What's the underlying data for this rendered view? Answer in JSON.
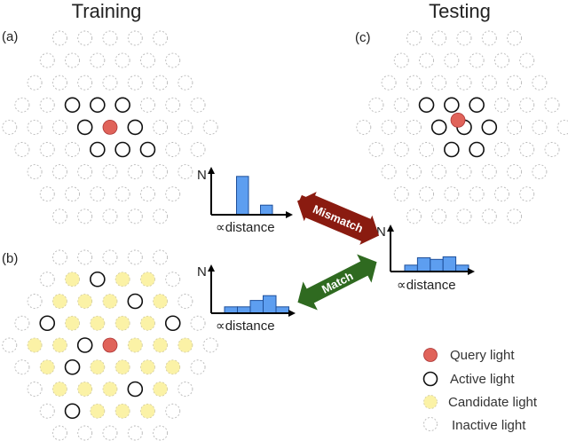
{
  "titles": {
    "training": "Training",
    "testing": "Testing"
  },
  "panels": [
    {
      "label": "(a)",
      "states": [
        "IIIII",
        "IIIIII",
        "IIIIIII",
        "IIAAAIII",
        "IIIAQAIII",
        "IIIAAAII",
        "IIIIIII",
        "IIIIII",
        "IIIII"
      ],
      "query_offset": false
    },
    {
      "label": "(b)",
      "states": [
        "IIIII",
        "ICACCI",
        "ICCCACI",
        "IACCCCAI",
        "ICCAQCCCI",
        "ICACCCCI",
        "ICCCACI",
        "IACCCI",
        "IIIII"
      ],
      "query_offset": false
    },
    {
      "label": "(c)",
      "states": [
        "IIIII",
        "IIIIII",
        "IIIIIII",
        "IIAAAIII",
        "IIIAAAIII",
        "IIIAAIII",
        "IIIIIII",
        "IIIIII",
        "IIIII"
      ],
      "query_offset": true
    }
  ],
  "histograms": [
    {
      "y_label": "N",
      "x_label": "∝distance",
      "values": [
        0,
        12,
        0,
        3,
        0
      ]
    },
    {
      "y_label": "N",
      "x_label": "∝distance",
      "values": [
        2,
        2,
        4,
        5.5,
        2
      ]
    },
    {
      "y_label": "N",
      "x_label": "∝distance",
      "values": [
        2,
        4.3,
        3.8,
        4.6,
        2
      ]
    }
  ],
  "arrows": {
    "mismatch": "Mismatch",
    "match": "Match"
  },
  "legend": [
    {
      "key": "Q",
      "label": "Query light"
    },
    {
      "key": "A",
      "label": "Active light"
    },
    {
      "key": "C",
      "label": "Candidate light"
    },
    {
      "key": "I",
      "label": "Inactive light"
    }
  ],
  "colors": {
    "query": "#e0635a",
    "active": "#111111",
    "candidate": "#fbf2a6",
    "inactive": "#b8b8b8",
    "bar": "#5d9ef0",
    "bar_edge": "#1e4f9a",
    "mismatch": "#8a1b10",
    "match": "#2f6a20"
  }
}
